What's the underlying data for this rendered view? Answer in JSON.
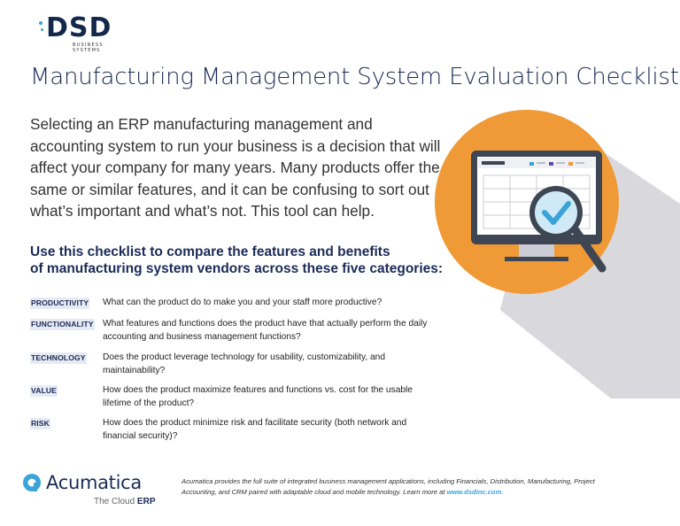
{
  "logo": {
    "brand": "DSD",
    "subtitle": "BUSINESS SYSTEMS"
  },
  "title": "Manufacturing Management System Evaluation Checklist",
  "intro": "Selecting an ERP manufacturing management and accounting system to run your business is a decision that will affect your company for many years. Many products offer the same or similar features, and it can be confusing to sort out what’s important and what’s not. This tool can help.",
  "subhead": {
    "line1": "Use this checklist to compare the features and benefits",
    "line2": "of manufacturing system vendors across these five categories:"
  },
  "categories": [
    {
      "label": "PRODUCTIVITY",
      "description": "What can the product do to make you and your staff more productive?"
    },
    {
      "label": "FUNCTIONALITY",
      "description": "What features and functions does the product have that actually perform the daily accounting and business management functions?"
    },
    {
      "label": "TECHNOLOGY",
      "description": "Does the product leverage technology for usability, customizability, and maintainability?"
    },
    {
      "label": "VALUE",
      "description": "How does the product maximize features and functions vs. cost for the usable lifetime of the product?"
    },
    {
      "label": "RISK",
      "description": "How does the product minimize risk and facilitate security (both network and financial security)?"
    }
  ],
  "footer": {
    "brand": "Acumatica",
    "tagline_prefix": "The Cloud ",
    "tagline_bold": "ERP",
    "text": "Acumatica provides the full suite of integrated business management applications, including Financials, Distribution, Manufacturing, Project Accounting, and CRM paired with adaptable cloud and mobile technology. Learn more at ",
    "link": "www.dsdinc.com",
    "text_end": "."
  },
  "colors": {
    "navy": "#1a2b57",
    "orange": "#ef9a36",
    "accent_blue": "#3aa3d8",
    "shadow_gray": "#d9d9dd"
  },
  "icons": [
    "dsd-logo",
    "monitor-magnifier-check-illustration",
    "acumatica-logo-icon"
  ]
}
